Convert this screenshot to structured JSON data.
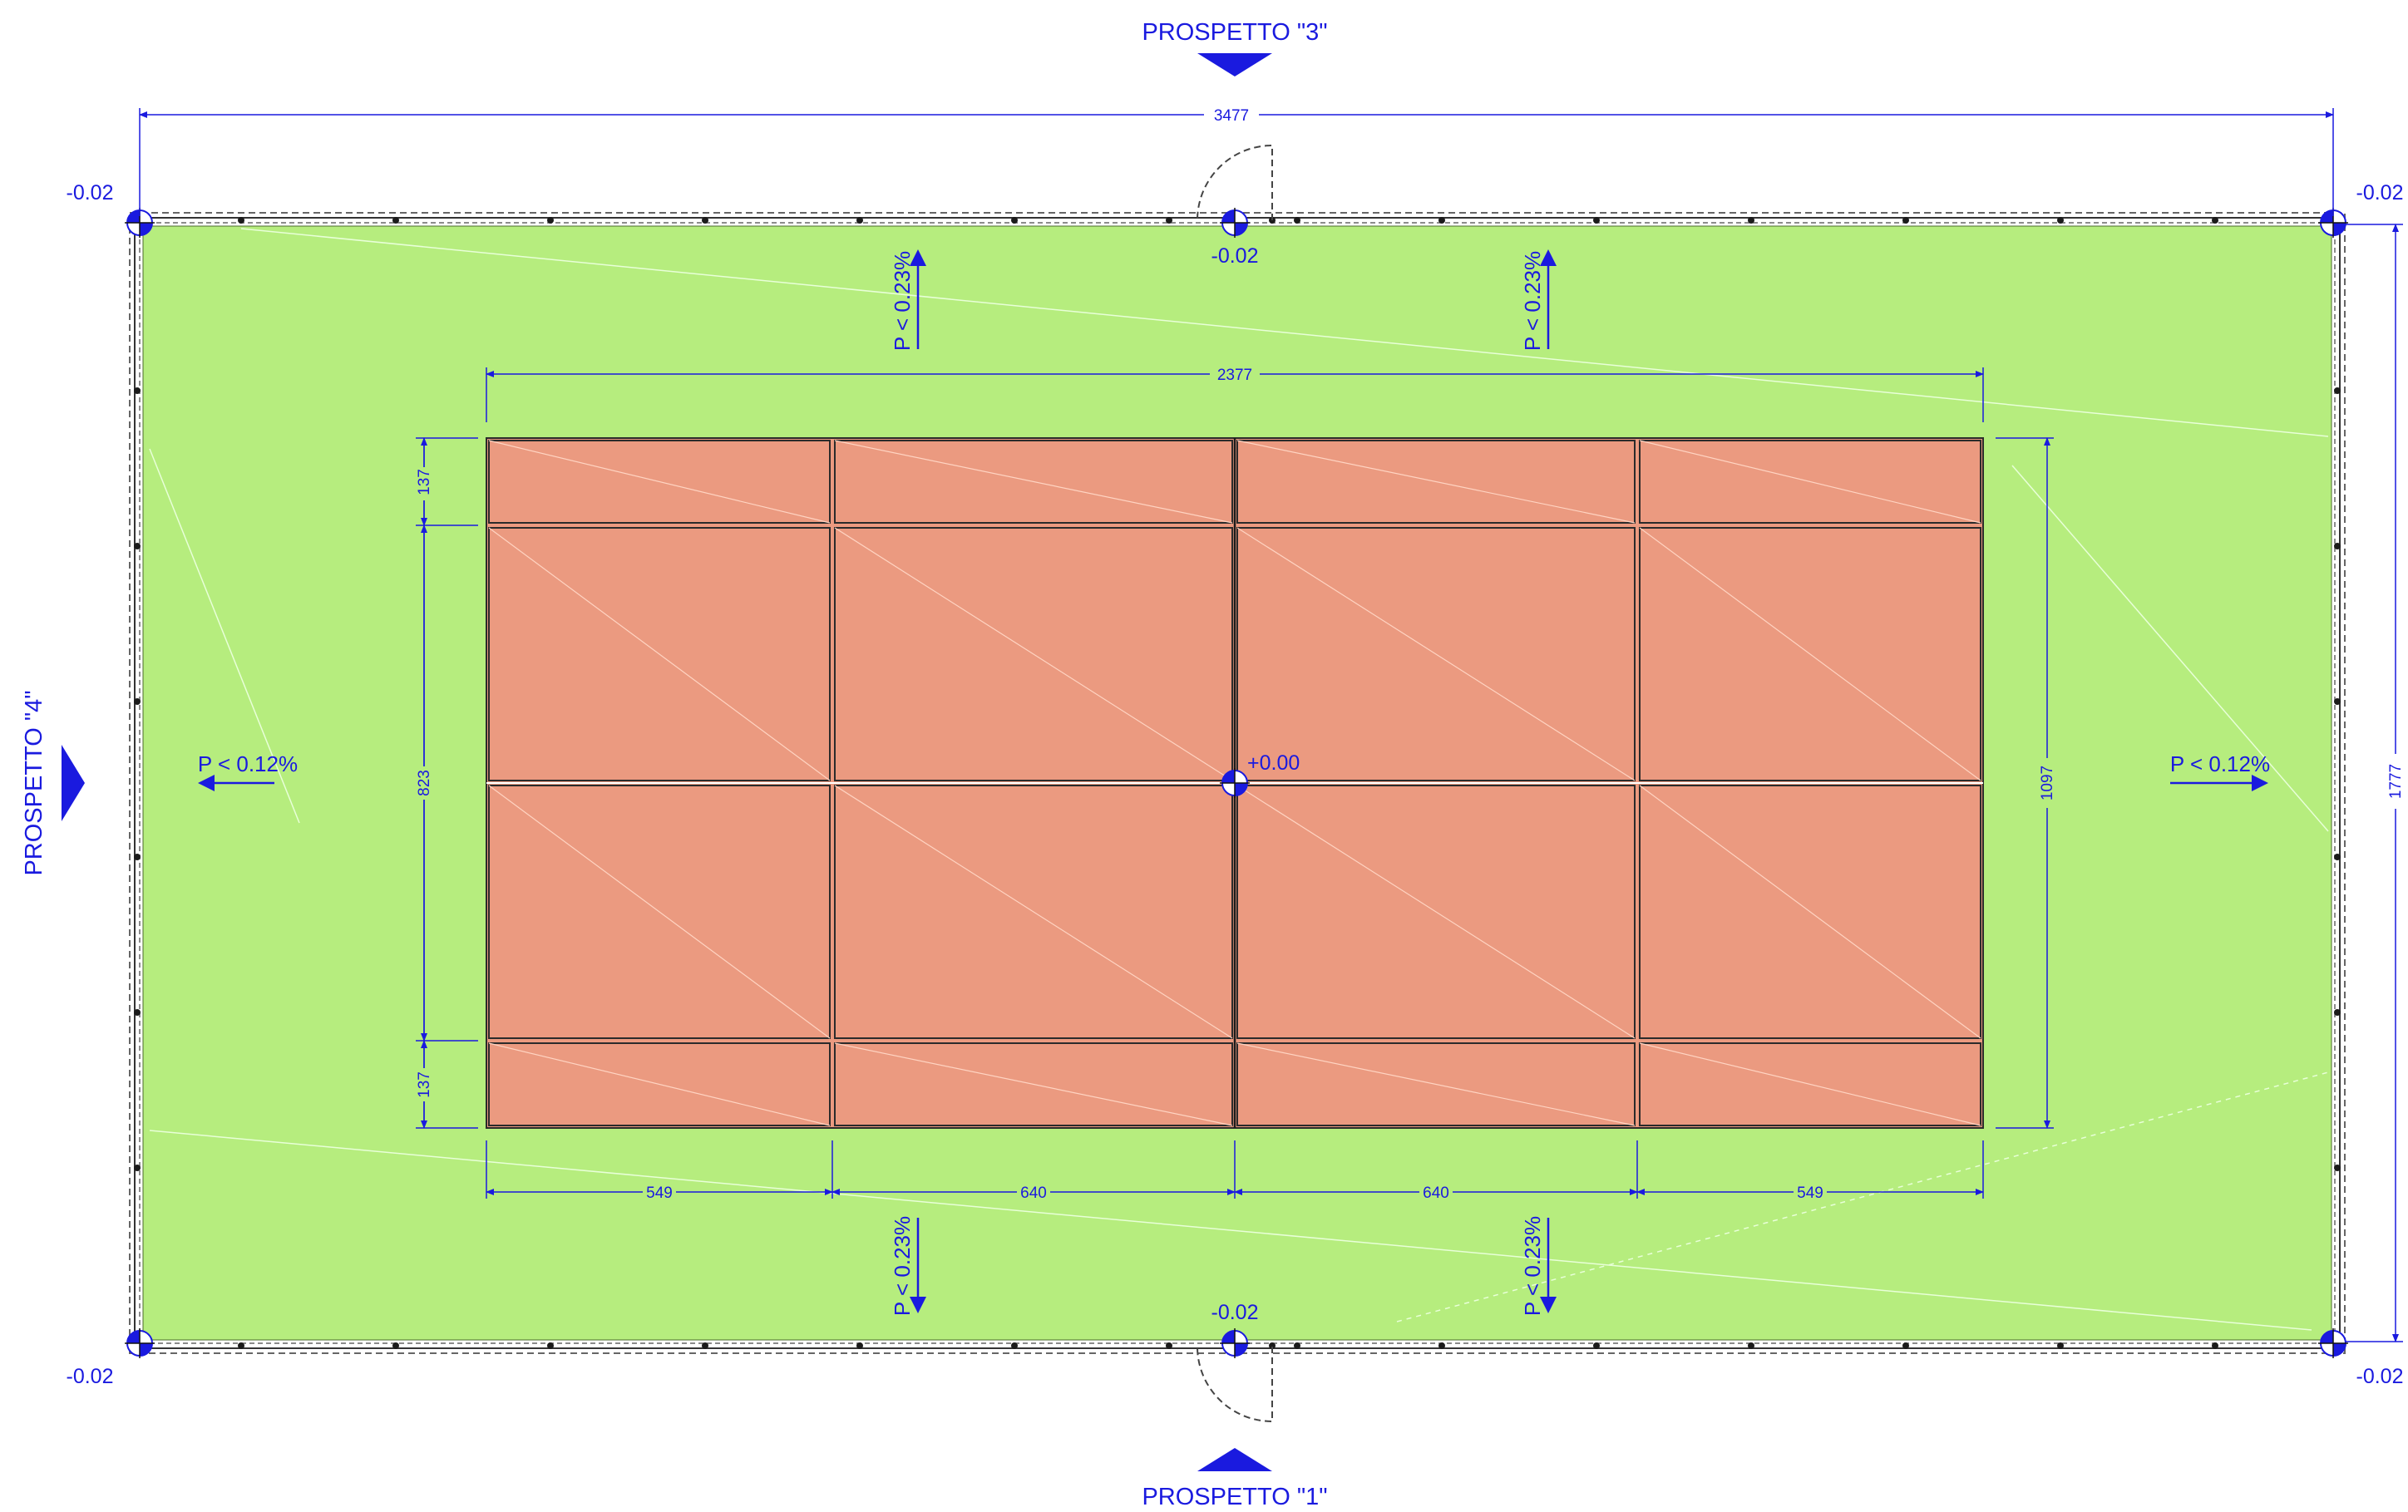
{
  "elevations": {
    "top_left": "-0.02",
    "top_right": "-0.02",
    "bottom_left": "-0.02",
    "bottom_right": "-0.02",
    "top_mid": "-0.02",
    "bottom_mid": "-0.02",
    "center": "+0.00"
  },
  "views": {
    "top": "PROSPETTO \"3\"",
    "bottom": "PROSPETTO \"1\"",
    "left": "PROSPETTO \"4\""
  },
  "slopes": {
    "top_left": "P < 0.23%",
    "top_right": "P < 0.23%",
    "bottom_left": "P < 0.23%",
    "bottom_right": "P < 0.23%",
    "left": "P < 0.12%",
    "right": "P < 0.12%"
  },
  "dimensions": {
    "overall_width": "3477",
    "overall_height": "1777",
    "court_width": "2377",
    "court_height": "1097",
    "alley_top": "137",
    "service_height": "823",
    "alley_bottom": "137",
    "back_left": "549",
    "service_left": "640",
    "service_right": "640",
    "back_right": "549"
  },
  "colors": {
    "surround": "#b6ed7e",
    "court": "#eb9a80",
    "annotation": "#1a1adf",
    "line": "#2b2b2b"
  }
}
